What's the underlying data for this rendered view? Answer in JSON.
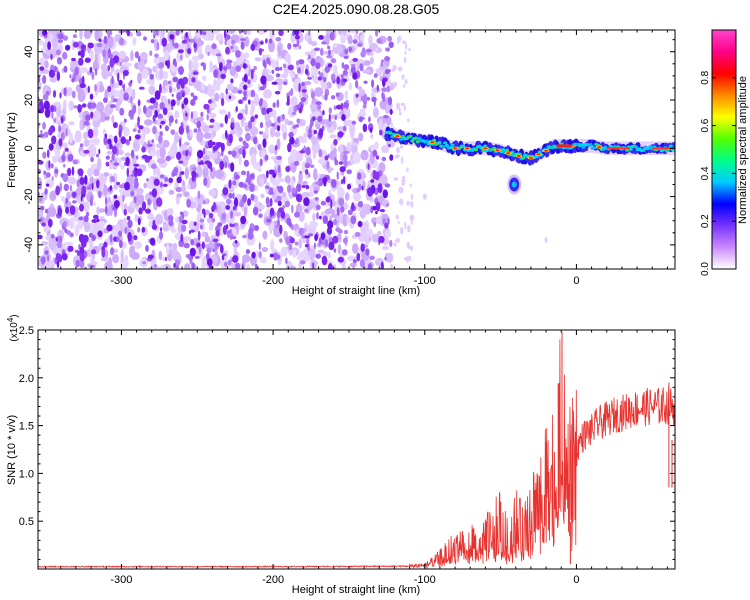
{
  "title": "C2E4.2025.090.08.28.G05",
  "colors": {
    "background": "#ffffff",
    "snr_line": "#e8322f",
    "speckle_dark": "#7a22f0",
    "speckle_light": "#d6b8fb"
  },
  "chart_data": [
    {
      "type": "heatmap",
      "title": "C2E4.2025.090.08.28.G05",
      "xlabel": "Height of straight line (km)",
      "ylabel": "Frequency (Hz)",
      "xlim": [
        -355,
        65
      ],
      "ylim": [
        -50,
        49
      ],
      "x_ticks": [
        -300,
        -200,
        -100,
        0
      ],
      "y_ticks": [
        -40,
        -20,
        0,
        20,
        40
      ],
      "noise_region_x": [
        -355,
        -122
      ],
      "ridge": {
        "x": [
          -125,
          -110,
          -100,
          -90,
          -80,
          -70,
          -60,
          -50,
          -40,
          -30,
          -20,
          -15,
          -10,
          0,
          10,
          20,
          30,
          40,
          50,
          60
        ],
        "frequency": [
          6,
          4,
          3,
          2,
          0,
          0,
          0,
          -1,
          -3,
          -4,
          -1,
          1,
          1,
          1,
          1,
          0,
          0,
          0,
          0,
          0
        ]
      },
      "blob": {
        "x": -41,
        "frequency": -15
      },
      "colorbar": {
        "label": "Normalized spectral amplitude",
        "range": [
          0,
          1
        ],
        "ticks": [
          "0.0",
          "0.2",
          "0.4",
          "0.6",
          "0.8"
        ],
        "colormap": [
          "#ffffff",
          "#cc88ff",
          "#7733ff",
          "#0000ff",
          "#00ccff",
          "#00ff88",
          "#55ff00",
          "#ffff00",
          "#ff8800",
          "#ff0000",
          "#ff0088",
          "#ff44cc"
        ]
      },
      "grid": false
    },
    {
      "type": "line",
      "xlabel": "Height of straight line (km)",
      "ylabel": "SNR (10 * v/v)",
      "y_multiplier": "(x10",
      "y_multiplier_exp": "4",
      "xlim": [
        -355,
        65
      ],
      "ylim": [
        0,
        25000
      ],
      "x_ticks": [
        -300,
        -200,
        -100,
        0
      ],
      "y_ticks": [
        "0.5",
        "1.0",
        "1.5",
        "2.0",
        "2.5"
      ],
      "y_tick_values": [
        5000,
        10000,
        15000,
        20000,
        25000
      ],
      "series": [
        {
          "x": [
            -355,
            -300,
            -200,
            -130,
            -110,
            -100,
            -95,
            -90,
            -85,
            -80,
            -75,
            -70,
            -65,
            -60,
            -55,
            -50,
            -45,
            -40,
            -35,
            -30,
            -25,
            -20,
            -17,
            -14,
            -12,
            -10,
            -8,
            -6,
            -5,
            -3,
            -1,
            0,
            2,
            5,
            10,
            15,
            20,
            25,
            30,
            35,
            40,
            45,
            50,
            55,
            58,
            62,
            65
          ],
          "y": [
            250,
            250,
            250,
            280,
            300,
            400,
            700,
            1200,
            1800,
            2400,
            2700,
            2600,
            2900,
            3200,
            4000,
            4800,
            2800,
            5200,
            3600,
            6300,
            7400,
            8600,
            11000,
            8200,
            10300,
            19400,
            11800,
            12300,
            9600,
            10100,
            11000,
            12000,
            13300,
            14000,
            14500,
            15300,
            15600,
            16100,
            16300,
            16600,
            16800,
            16900,
            17000,
            17000,
            17100,
            17100,
            16900
          ],
          "spikes": [
            {
              "x": -9.5,
              "y": 24800
            },
            {
              "x": -12,
              "y": 19400
            },
            {
              "x": -20,
              "y": 13300
            },
            {
              "x": -4,
              "y": 500
            },
            {
              "x": 61,
              "y": 19500
            },
            {
              "x": 63,
              "y": 13500
            }
          ]
        }
      ],
      "grid": false
    }
  ]
}
